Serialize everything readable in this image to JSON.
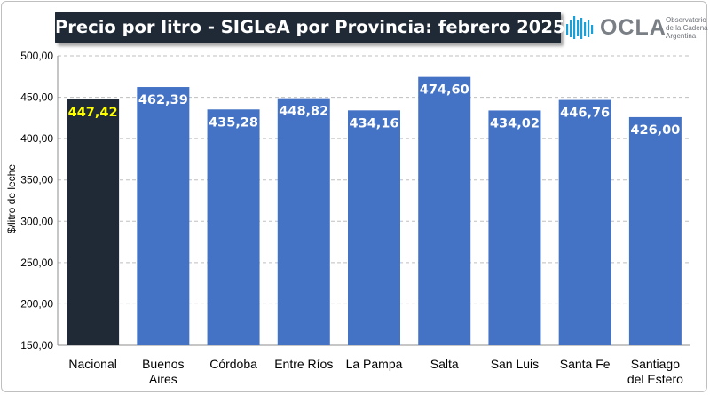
{
  "header": {
    "title": "Precio por litro - SIGLeA por Provincia: febrero 2025"
  },
  "logo": {
    "name": "OCLA",
    "line1": "Observatorio",
    "line2": "de la Cadena Láctea",
    "line3": "Argentina",
    "icon": "bars-logo-icon",
    "color": "#1a9fd8"
  },
  "chart_data": {
    "type": "bar",
    "title": "Precio por litro - SIGLeA por Provincia: febrero 2025",
    "ylabel": "$/litro de leche",
    "xlabel": "",
    "ylim": [
      150,
      500
    ],
    "yticks": [
      "150,00",
      "200,00",
      "250,00",
      "300,00",
      "350,00",
      "400,00",
      "450,00",
      "500,00"
    ],
    "ytick_values": [
      150,
      200,
      250,
      300,
      350,
      400,
      450,
      500
    ],
    "grid": true,
    "categories": [
      [
        "Nacional"
      ],
      [
        "Buenos",
        "Aires"
      ],
      [
        "Córdoba"
      ],
      [
        "Entre Ríos"
      ],
      [
        "La Pampa"
      ],
      [
        "Salta"
      ],
      [
        "San Luis"
      ],
      [
        "Santa Fe"
      ],
      [
        "Santiago",
        "del Estero"
      ]
    ],
    "values": [
      447.42,
      462.39,
      435.28,
      448.82,
      434.16,
      474.6,
      434.02,
      446.76,
      426.0
    ],
    "labels": [
      "447,42",
      "462,39",
      "435,28",
      "448,82",
      "434,16",
      "474,60",
      "434,02",
      "446,76",
      "426,00"
    ],
    "colors": {
      "highlight_bar": "#1f2a36",
      "highlight_label": "#ffff00",
      "bar": "#4472c4",
      "label": "#ffffff",
      "grid": "#bfbfbf"
    }
  }
}
